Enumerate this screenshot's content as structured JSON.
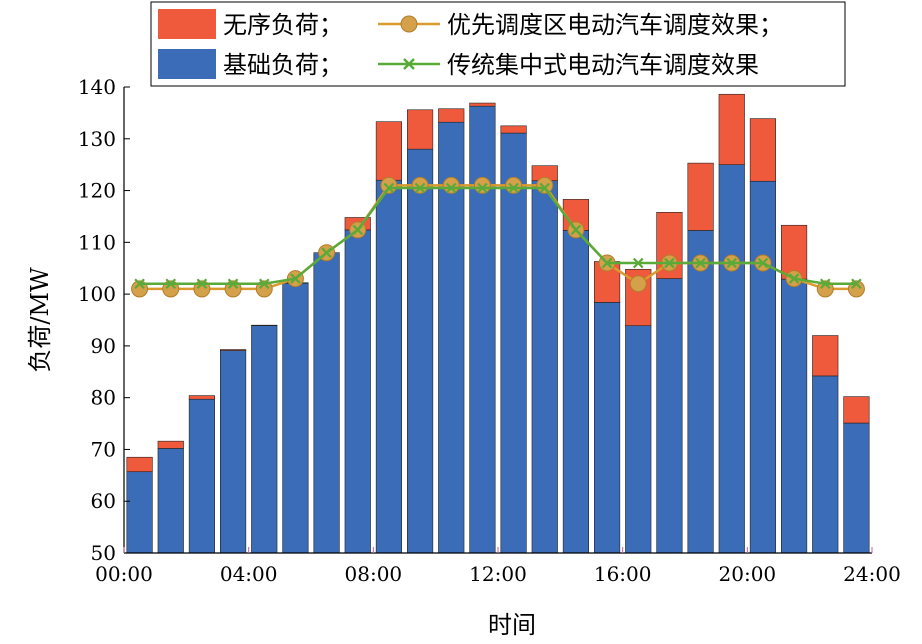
{
  "chart_data": {
    "type": "bar",
    "stacked": true,
    "xlabel": "时间",
    "ylabel": "负荷/MW",
    "ylim": [
      50,
      140
    ],
    "yticks": [
      50,
      60,
      70,
      80,
      90,
      100,
      110,
      120,
      130,
      140
    ],
    "xlim": [
      0,
      24
    ],
    "xtick_values": [
      0,
      4,
      8,
      12,
      16,
      20,
      24
    ],
    "xtick_labels": [
      "00:00",
      "04:00",
      "08:00",
      "12:00",
      "16:00",
      "20:00",
      "24:00"
    ],
    "legend_position": "top",
    "x": [
      0,
      1,
      2,
      3,
      4,
      5,
      6,
      7,
      8,
      9,
      10,
      11,
      12,
      13,
      14,
      15,
      16,
      17,
      18,
      19,
      20,
      21,
      22,
      23
    ],
    "base_load": [
      65.7,
      70.2,
      79.7,
      89.1,
      93.9,
      102.1,
      108.0,
      112.4,
      122.0,
      128.0,
      133.2,
      136.3,
      131.1,
      121.9,
      112.3,
      98.4,
      93.9,
      103.0,
      112.3,
      125.0,
      121.8,
      102.9,
      84.2,
      75.1
    ],
    "disorder_load": [
      2.8,
      1.4,
      0.7,
      0.2,
      0.1,
      0.1,
      0.0,
      2.4,
      11.3,
      7.6,
      2.6,
      0.6,
      1.4,
      2.9,
      6.0,
      7.9,
      10.9,
      12.8,
      13.0,
      13.6,
      12.1,
      10.4,
      7.8,
      5.1
    ],
    "series": [
      {
        "name": "无序负荷；",
        "color": "#f05a3c",
        "kind": "stacked-bar"
      },
      {
        "name": "基础负荷；",
        "color": "#3a6cb8",
        "kind": "stacked-bar"
      },
      {
        "name": "优先调度区电动汽车调度效果；",
        "color": "#d99a2e",
        "kind": "line",
        "marker": "circle",
        "x": [
          0,
          1,
          2,
          3,
          4,
          5,
          6,
          7,
          8,
          9,
          10,
          11,
          12,
          13,
          14,
          15,
          16,
          17,
          18,
          19,
          20,
          21,
          22,
          23
        ],
        "values": [
          101,
          101,
          101,
          101,
          101,
          103,
          108,
          112.4,
          121,
          121,
          121,
          121,
          121,
          121,
          112.4,
          106,
          102,
          106,
          106,
          106,
          106,
          103,
          101,
          101
        ]
      },
      {
        "name": "传统集中式电动汽车调度效果",
        "color": "#5aaa3a",
        "kind": "line",
        "marker": "x",
        "x": [
          0,
          1,
          2,
          3,
          4,
          5,
          6,
          7,
          8,
          9,
          10,
          11,
          12,
          13,
          14,
          15,
          16,
          17,
          18,
          19,
          20,
          21,
          22,
          23
        ],
        "values": [
          102,
          102,
          102,
          102,
          102,
          103,
          108,
          112.4,
          120.5,
          120.5,
          120.5,
          120.5,
          120.5,
          120.5,
          112.4,
          106,
          106,
          106,
          106,
          106,
          106,
          103,
          102,
          102
        ]
      }
    ]
  },
  "colors": {
    "disorder": "#f05a3c",
    "base": "#3a6cb8",
    "priority_line": "#d99a2e",
    "priority_marker": "#d4a04a",
    "traditional_line": "#5aaa3a",
    "axis": "#000000"
  }
}
